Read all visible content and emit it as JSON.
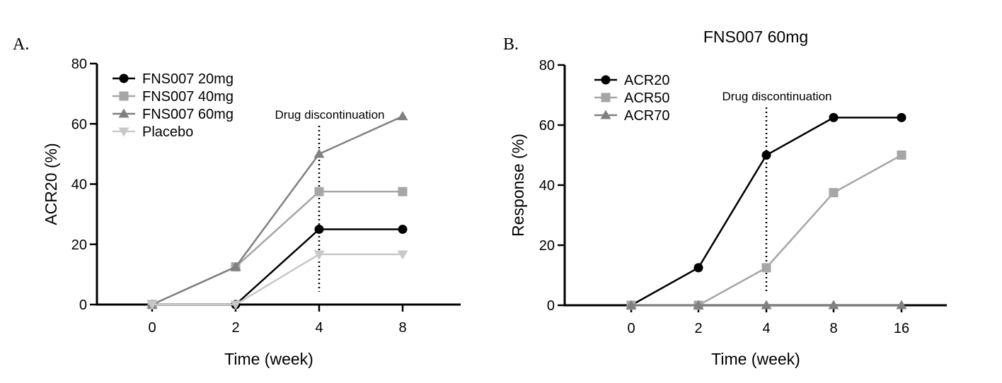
{
  "panels": [
    {
      "letter": "A.",
      "chart_data": {
        "type": "line",
        "title": "",
        "xlabel": "Time (week)",
        "ylabel": "ACR20 (%)",
        "categories": [
          "0",
          "2",
          "4",
          "8"
        ],
        "ylim": [
          0,
          80
        ],
        "yticks": [
          0,
          20,
          40,
          60,
          80
        ],
        "legend_position": "top-left",
        "annotation": {
          "text": "Drug discontinuation",
          "at_category": "4"
        },
        "series": [
          {
            "name": "FNS007 20mg",
            "marker": "circle",
            "color": "#000000",
            "values": [
              0,
              0,
              25,
              25
            ]
          },
          {
            "name": "FNS007 40mg",
            "marker": "square",
            "color": "#a6a6a6",
            "values": [
              0,
              12.5,
              37.5,
              37.5
            ]
          },
          {
            "name": "FNS007 60mg",
            "marker": "triangle-up",
            "color": "#808080",
            "values": [
              0,
              12.5,
              50,
              62.5
            ]
          },
          {
            "name": "Placebo",
            "marker": "triangle-down",
            "color": "#c8c8c8",
            "values": [
              0,
              0,
              16.7,
              16.7
            ]
          }
        ]
      }
    },
    {
      "letter": "B.",
      "chart_data": {
        "type": "line",
        "title": "FNS007 60mg",
        "xlabel": "Time (week)",
        "ylabel": "Response (%)",
        "categories": [
          "0",
          "2",
          "4",
          "8",
          "16"
        ],
        "ylim": [
          0,
          80
        ],
        "yticks": [
          0,
          20,
          40,
          60,
          80
        ],
        "legend_position": "top-left",
        "annotation": {
          "text": "Drug discontinuation",
          "at_category": "4"
        },
        "series": [
          {
            "name": "ACR20",
            "marker": "circle",
            "color": "#000000",
            "values": [
              0,
              12.5,
              50,
              62.5,
              62.5
            ]
          },
          {
            "name": "ACR50",
            "marker": "square",
            "color": "#a6a6a6",
            "values": [
              0,
              0,
              12.5,
              37.5,
              50
            ]
          },
          {
            "name": "ACR70",
            "marker": "triangle-up",
            "color": "#808080",
            "values": [
              0,
              0,
              0,
              0,
              0
            ]
          }
        ]
      }
    }
  ]
}
